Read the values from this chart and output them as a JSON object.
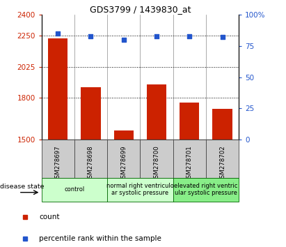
{
  "title": "GDS3799 / 1439830_at",
  "samples": [
    "GSM278697",
    "GSM278698",
    "GSM278699",
    "GSM278700",
    "GSM278701",
    "GSM278702"
  ],
  "counts": [
    2230,
    1880,
    1565,
    1900,
    1765,
    1720
  ],
  "percentiles": [
    85,
    83,
    80,
    83,
    83,
    82
  ],
  "ylim_left": [
    1500,
    2400
  ],
  "ylim_right": [
    0,
    100
  ],
  "yticks_left": [
    1500,
    1800,
    2025,
    2250,
    2400
  ],
  "yticks_right": [
    0,
    25,
    50,
    75,
    100
  ],
  "ytick_labels_left": [
    "1500",
    "1800",
    "2025",
    "2250",
    "2400"
  ],
  "ytick_labels_right": [
    "0",
    "25",
    "50",
    "75",
    "100%"
  ],
  "bar_color": "#cc2200",
  "scatter_color": "#2255cc",
  "group_boundaries": [
    {
      "start": 0,
      "end": 2,
      "label": "control",
      "color": "#ccffcc"
    },
    {
      "start": 2,
      "end": 4,
      "label": "normal right ventriculo\nar systolic pressure",
      "color": "#ccffcc"
    },
    {
      "start": 4,
      "end": 6,
      "label": "elevated right ventric\nular systolic pressure",
      "color": "#88ee88"
    }
  ],
  "disease_state_label": "disease state",
  "legend_count_label": "count",
  "legend_pct_label": "percentile rank within the sample",
  "bar_width": 0.6
}
